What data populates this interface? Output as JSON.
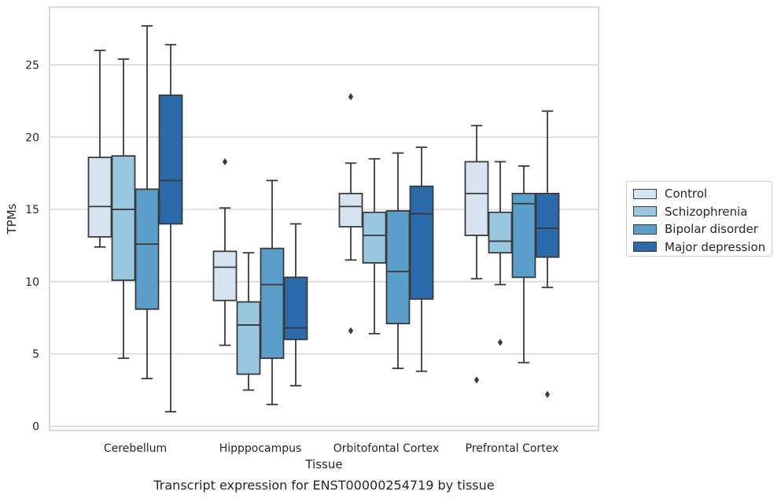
{
  "chart_data": {
    "type": "boxplot",
    "title": "Transcript expression for ENST00000254719 by tissue",
    "xlabel": "Tissue",
    "ylabel": "TPMs",
    "ylim": [
      -0.3,
      29
    ],
    "yticks": [
      0,
      5,
      10,
      15,
      20,
      25
    ],
    "grid": true,
    "legend_position": "right",
    "categories": [
      "Cerebellum",
      "Hipppocampus",
      "Orbitofontal Cortex",
      "Prefrontal Cortex"
    ],
    "series": [
      {
        "name": "Control",
        "color": "#d6e4f2",
        "boxes": [
          {
            "whislo": 12.4,
            "q1": 13.1,
            "med": 15.2,
            "q3": 18.6,
            "whishi": 26.0,
            "fliers": []
          },
          {
            "whislo": 5.6,
            "q1": 8.7,
            "med": 11.0,
            "q3": 12.1,
            "whishi": 15.1,
            "fliers": [
              18.3
            ]
          },
          {
            "whislo": 11.5,
            "q1": 13.8,
            "med": 15.2,
            "q3": 16.1,
            "whishi": 18.2,
            "fliers": [
              22.8,
              6.6
            ]
          },
          {
            "whislo": 10.2,
            "q1": 13.2,
            "med": 16.1,
            "q3": 18.3,
            "whishi": 20.8,
            "fliers": [
              3.2
            ]
          }
        ]
      },
      {
        "name": "Schizophrenia",
        "color": "#9ac7e0",
        "boxes": [
          {
            "whislo": 4.7,
            "q1": 10.1,
            "med": 15.0,
            "q3": 18.7,
            "whishi": 25.4,
            "fliers": []
          },
          {
            "whislo": 2.5,
            "q1": 3.6,
            "med": 7.0,
            "q3": 8.6,
            "whishi": 12.0,
            "fliers": []
          },
          {
            "whislo": 6.4,
            "q1": 11.3,
            "med": 13.2,
            "q3": 14.8,
            "whishi": 18.5,
            "fliers": []
          },
          {
            "whislo": 9.8,
            "q1": 12.0,
            "med": 12.8,
            "q3": 14.8,
            "whishi": 18.3,
            "fliers": [
              5.8
            ]
          }
        ]
      },
      {
        "name": "Bipolar disorder",
        "color": "#5a9ec9",
        "boxes": [
          {
            "whislo": 3.3,
            "q1": 8.1,
            "med": 12.6,
            "q3": 16.4,
            "whishi": 27.7,
            "fliers": []
          },
          {
            "whislo": 1.5,
            "q1": 4.7,
            "med": 9.8,
            "q3": 12.3,
            "whishi": 17.0,
            "fliers": []
          },
          {
            "whislo": 4.0,
            "q1": 7.1,
            "med": 10.7,
            "q3": 14.9,
            "whishi": 18.9,
            "fliers": []
          },
          {
            "whislo": 4.4,
            "q1": 10.3,
            "med": 15.4,
            "q3": 16.1,
            "whishi": 18.0,
            "fliers": []
          }
        ]
      },
      {
        "name": "Major depression",
        "color": "#2b6aa9",
        "boxes": [
          {
            "whislo": 1.0,
            "q1": 14.0,
            "med": 17.0,
            "q3": 22.9,
            "whishi": 26.4,
            "fliers": []
          },
          {
            "whislo": 2.8,
            "q1": 6.0,
            "med": 6.8,
            "q3": 10.3,
            "whishi": 14.0,
            "fliers": []
          },
          {
            "whislo": 3.8,
            "q1": 8.8,
            "med": 14.7,
            "q3": 16.6,
            "whishi": 19.3,
            "fliers": []
          },
          {
            "whislo": 9.6,
            "q1": 11.7,
            "med": 13.7,
            "q3": 16.1,
            "whishi": 21.8,
            "fliers": [
              2.2
            ]
          }
        ]
      }
    ]
  }
}
